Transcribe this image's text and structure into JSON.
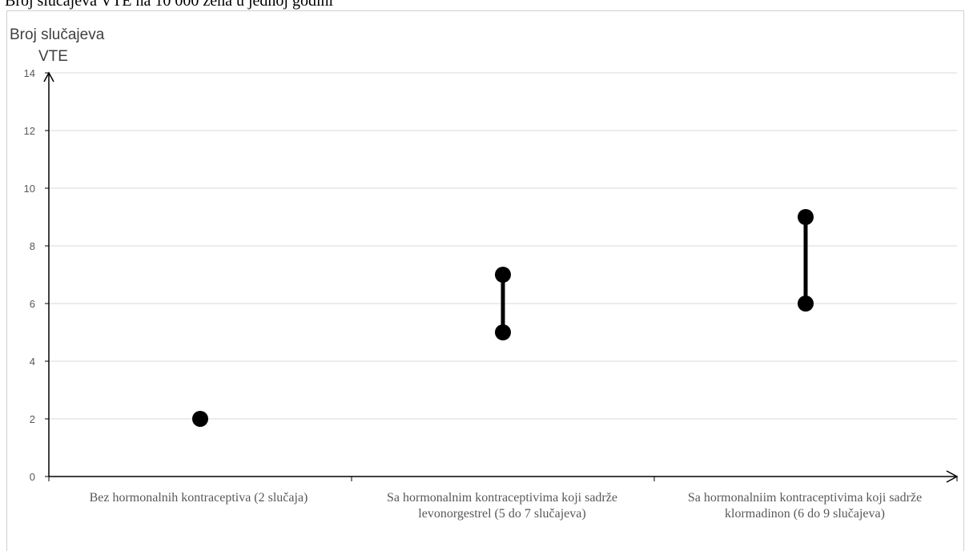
{
  "page": {
    "title": "Broj slučajeva VTE na 10 000 žena u jednoj godini"
  },
  "chart_data": {
    "type": "range",
    "title": "",
    "ylabel_line1": "Broj slučajeva",
    "ylabel_line2": "VTE",
    "xlabel": "",
    "ylim": [
      0,
      14
    ],
    "yticks": [
      "0",
      "2",
      "4",
      "6",
      "8",
      "10",
      "12",
      "14"
    ],
    "grid": true,
    "categories": [
      "Bez hormonalnih kontraceptiva (2 slučaja)",
      "Sa hormonalnim kontraceptivima koji sadrže levonorgestrel (5 do 7 slučajeva)",
      "Sa hormonalniim kontraceptivima koji sadrže klormadinon (6 do 9 slučajeva)"
    ],
    "ranges": [
      {
        "low": 2,
        "high": 2
      },
      {
        "low": 5,
        "high": 7
      },
      {
        "low": 6,
        "high": 9
      }
    ],
    "colors": {
      "marker": "#000000",
      "grid": "#d9d9d9",
      "axis": "#000000"
    }
  }
}
